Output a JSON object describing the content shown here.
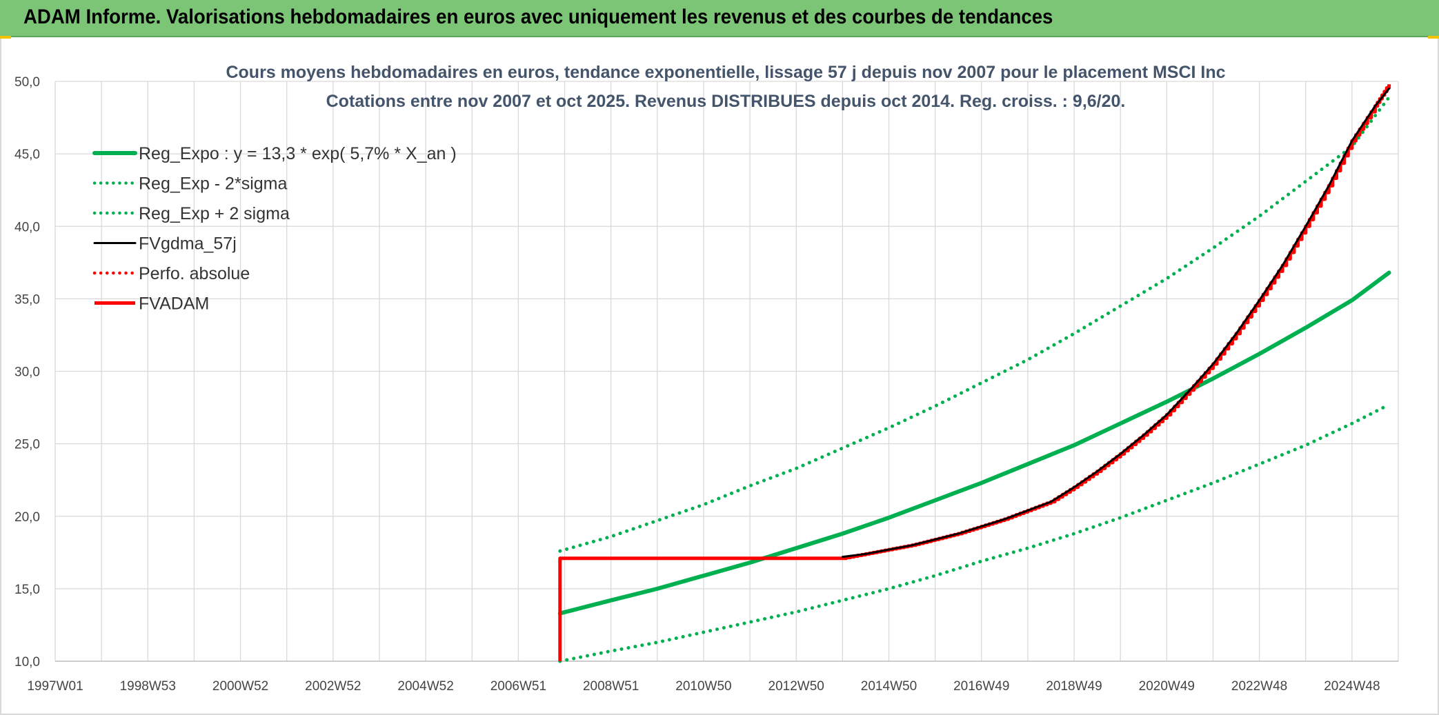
{
  "header": {
    "title": "ADAM Informe. Valorisations hebdomadaires en euros avec uniquement les revenus et des courbes de tendances"
  },
  "colors": {
    "header_bg": "#7cc576",
    "green_series": "#00b050",
    "red_series": "#ff0000",
    "black_series": "#000000",
    "accent_corners": "#f2c200"
  },
  "chart_data": {
    "type": "line",
    "title": "Cours moyens hebdomadaires en euros, tendance exponentielle, lissage 57 j depuis nov 2007 pour le placement MSCI Inc",
    "subtitle": "Cotations entre nov 2007 et oct 2025. Revenus DISTRIBUES depuis oct 2014. Reg. croiss. : 9,6/20.",
    "xlabel": "",
    "ylabel": "",
    "x_tick_labels": [
      "1997W01",
      "1998W53",
      "2000W52",
      "2002W52",
      "2004W52",
      "2006W51",
      "2008W51",
      "2010W50",
      "2012W50",
      "2014W50",
      "2016W49",
      "2018W49",
      "2020W49",
      "2022W48",
      "2024W48"
    ],
    "x_range_years": [
      1997.0,
      2026.0
    ],
    "y_tick_labels": [
      "10,0",
      "15,0",
      "20,0",
      "25,0",
      "30,0",
      "35,0",
      "40,0",
      "45,0",
      "50,0"
    ],
    "ylim": [
      10,
      50
    ],
    "grid": true,
    "legend_position": "top-left",
    "series": [
      {
        "name": "Reg_Expo : y = 13,3 * exp( 5,7% *  X_an )",
        "style": "solid",
        "color": "#00b050",
        "x": [
          2007.9,
          2009,
          2010,
          2011,
          2012,
          2013,
          2014,
          2015,
          2016,
          2017,
          2018,
          2019,
          2020,
          2021,
          2022,
          2023,
          2024,
          2025,
          2025.8
        ],
        "y": [
          13.3,
          14.2,
          15.0,
          15.9,
          16.8,
          17.8,
          18.8,
          19.9,
          21.1,
          22.3,
          23.6,
          24.9,
          26.4,
          27.9,
          29.5,
          31.2,
          33.0,
          34.9,
          36.8
        ]
      },
      {
        "name": "Reg_Exp - 2*sigma",
        "style": "dotted",
        "color": "#00b050",
        "x": [
          2007.9,
          2009,
          2010,
          2011,
          2012,
          2013,
          2014,
          2015,
          2016,
          2017,
          2018,
          2019,
          2020,
          2021,
          2022,
          2023,
          2024,
          2025,
          2025.8
        ],
        "y": [
          10.0,
          10.7,
          11.3,
          12.0,
          12.7,
          13.4,
          14.2,
          15.0,
          15.9,
          16.9,
          17.8,
          18.8,
          19.9,
          21.1,
          22.3,
          23.6,
          24.9,
          26.4,
          27.7
        ]
      },
      {
        "name": "Reg_Exp + 2 sigma",
        "style": "dotted",
        "color": "#00b050",
        "x": [
          2007.9,
          2009,
          2010,
          2011,
          2012,
          2013,
          2014,
          2015,
          2016,
          2017,
          2018,
          2019,
          2020,
          2021,
          2022,
          2023,
          2024,
          2025,
          2025.8
        ],
        "y": [
          17.6,
          18.6,
          19.7,
          20.8,
          22.1,
          23.3,
          24.7,
          26.1,
          27.6,
          29.2,
          30.8,
          32.6,
          34.5,
          36.4,
          38.5,
          40.7,
          43.1,
          45.5,
          48.9
        ]
      },
      {
        "name": "FVgdma_57j",
        "style": "solid",
        "color": "#000000",
        "x": [
          2014.0,
          2014.5,
          2015.0,
          2015.5,
          2016.0,
          2016.5,
          2017.0,
          2017.5,
          2018.0,
          2018.5,
          2019.0,
          2019.5,
          2020.0,
          2020.5,
          2021.0,
          2021.5,
          2022.0,
          2022.5,
          2023.0,
          2023.5,
          2024.0,
          2024.5,
          2025.0,
          2025.5,
          2025.8
        ],
        "y": [
          17.2,
          17.4,
          17.7,
          18.0,
          18.4,
          18.8,
          19.3,
          19.8,
          20.4,
          21.0,
          22.0,
          23.1,
          24.3,
          25.6,
          27.0,
          28.7,
          30.5,
          32.6,
          34.9,
          37.3,
          40.0,
          42.8,
          45.9,
          48.3,
          49.5
        ]
      },
      {
        "name": "Perfo. absolue",
        "style": "dotted",
        "color": "#ff0000",
        "x": [],
        "y": []
      },
      {
        "name": "FVADAM",
        "style": "solid-stepped",
        "color": "#ff0000",
        "x": [
          2007.9,
          2007.9,
          2014.0,
          2014.5,
          2015.0,
          2015.5,
          2016.0,
          2016.5,
          2017.0,
          2017.5,
          2018.0,
          2018.5,
          2019.0,
          2019.5,
          2020.0,
          2020.5,
          2021.0,
          2021.5,
          2022.0,
          2022.5,
          2023.0,
          2023.5,
          2024.0,
          2024.5,
          2025.0,
          2025.5,
          2025.8
        ],
        "y": [
          10.0,
          17.1,
          17.1,
          17.4,
          17.7,
          18.0,
          18.4,
          18.8,
          19.3,
          19.8,
          20.4,
          21.0,
          22.0,
          23.1,
          24.3,
          25.6,
          27.0,
          28.7,
          30.5,
          32.6,
          34.9,
          37.3,
          40.0,
          42.8,
          45.9,
          48.3,
          49.8
        ]
      }
    ]
  }
}
